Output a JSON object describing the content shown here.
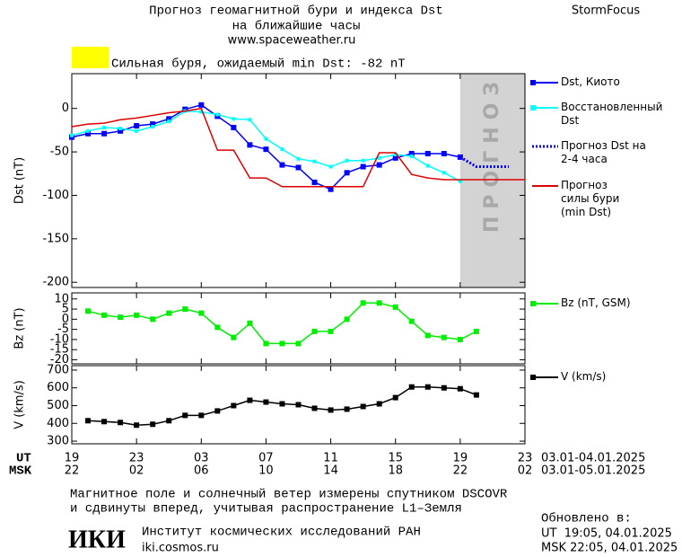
{
  "header": {
    "title": "Прогноз геомагнитной бури и индекса Dst",
    "subtitle": "на ближайшие часы",
    "url": "www.spaceweather.ru",
    "brand": "StormFocus"
  },
  "storm": {
    "label": "Сильная буря, ожидаемый min Dst: -82 nT",
    "color": "#ffff00"
  },
  "time_axis": {
    "xlim": [
      0,
      28
    ],
    "ut_label": "UT",
    "msk_label": "MSK",
    "ut_ticks": [
      {
        "value": 0,
        "label": "19"
      },
      {
        "value": 4,
        "label": "23"
      },
      {
        "value": 8,
        "label": "03"
      },
      {
        "value": 12,
        "label": "07"
      },
      {
        "value": 16,
        "label": "11"
      },
      {
        "value": 20,
        "label": "15"
      },
      {
        "value": 24,
        "label": "19"
      },
      {
        "value": 28,
        "label": "23"
      }
    ],
    "msk_ticks": [
      {
        "value": 0,
        "label": "22"
      },
      {
        "value": 4,
        "label": "02"
      },
      {
        "value": 8,
        "label": "06"
      },
      {
        "value": 12,
        "label": "10"
      },
      {
        "value": 16,
        "label": "14"
      },
      {
        "value": 20,
        "label": "18"
      },
      {
        "value": 24,
        "label": "22"
      },
      {
        "value": 28,
        "label": "02"
      }
    ],
    "ut_dates": "03.01-04.01.2025",
    "msk_dates": "03.01-05.01.2025"
  },
  "chart_data": [
    {
      "type": "line",
      "ylabel": "Dst (nT)",
      "ylim": [
        -206,
        40
      ],
      "yticks": [
        0,
        -50,
        -100,
        -150,
        -200
      ],
      "forecast": {
        "label": "ПРОГНОЗ",
        "xlim": [
          24,
          28
        ],
        "color": "#d3d3d3"
      },
      "series": [
        {
          "name": "Dst, Киото",
          "color": "#0000ff",
          "marker": "square",
          "dash": false,
          "x": [
            0,
            1,
            2,
            3,
            4,
            5,
            6,
            7,
            8,
            9,
            10,
            11,
            12,
            13,
            14,
            15,
            16,
            17,
            18,
            19,
            20,
            21,
            22,
            23,
            24
          ],
          "values": [
            -33,
            -29,
            -29,
            -26,
            -20,
            -18,
            -12,
            -1,
            4,
            -9,
            -22,
            -42,
            -47,
            -65,
            -68,
            -85,
            -93,
            -74,
            -67,
            -65,
            -57,
            -52,
            -52,
            -52,
            -56
          ]
        },
        {
          "name": "Восстановленный Dst",
          "color": "#00ffff",
          "marker": "square",
          "dash": false,
          "x": [
            0,
            1,
            2,
            3,
            4,
            5,
            6,
            7,
            8,
            9,
            10,
            11,
            12,
            13,
            14,
            15,
            16,
            17,
            18,
            19,
            20,
            21,
            22,
            23,
            24
          ],
          "values": [
            -31,
            -26,
            -22,
            -23,
            -26,
            -21,
            -15,
            -3,
            -4,
            -7,
            -12,
            -13,
            -35,
            -47,
            -58,
            -61,
            -67,
            -60,
            -60,
            -57,
            -53,
            -55,
            -66,
            -74,
            -84
          ]
        },
        {
          "name": "Прогноз Dst на 2-4 часа",
          "color": "#0000ff",
          "marker": null,
          "dash": true,
          "x": [
            24,
            25,
            26,
            27
          ],
          "values": [
            -56,
            -67,
            -67,
            -67
          ]
        },
        {
          "name": "Прогноз силы бури (min Dst)",
          "color": "#dd0000",
          "marker": null,
          "dash": false,
          "x": [
            0,
            1,
            2,
            3,
            4,
            5,
            6,
            7,
            8,
            9,
            10,
            11,
            12,
            13,
            14,
            15,
            16,
            17,
            18,
            19,
            20,
            21,
            22,
            23,
            24,
            28
          ],
          "values": [
            -21,
            -18,
            -17,
            -13,
            -11,
            -8,
            -5,
            -3,
            0,
            -48,
            -48,
            -80,
            -80,
            -90,
            -90,
            -90,
            -90,
            -90,
            -90,
            -51,
            -51,
            -76,
            -80,
            -82,
            -82,
            -82
          ]
        }
      ]
    },
    {
      "type": "line",
      "ylabel": "Bz (nT)",
      "ylim": [
        -22,
        13
      ],
      "yticks": [
        10,
        5,
        0,
        -5,
        -10,
        -15,
        -20
      ],
      "series": [
        {
          "name": "Bz (nT, GSM)",
          "color": "#00ee00",
          "marker": "square",
          "dash": false,
          "x": [
            1,
            2,
            3,
            4,
            5,
            6,
            7,
            8,
            9,
            10,
            11,
            12,
            13,
            14,
            15,
            16,
            17,
            18,
            19,
            20,
            21,
            22,
            23,
            24,
            25
          ],
          "values": [
            4,
            2,
            1,
            2,
            0,
            3,
            5,
            3,
            -4,
            -9,
            -2,
            -12,
            -12,
            -12,
            -6,
            -6,
            0,
            8,
            8,
            6,
            -1,
            -8,
            -9,
            -10,
            -6
          ]
        }
      ]
    },
    {
      "type": "line",
      "ylabel": "V (km/s)",
      "ylim": [
        285,
        725
      ],
      "yticks": [
        700,
        600,
        500,
        400,
        300
      ],
      "series": [
        {
          "name": "V (km/s)",
          "color": "#000000",
          "marker": "square",
          "dash": false,
          "x": [
            1,
            2,
            3,
            4,
            5,
            6,
            7,
            8,
            9,
            10,
            11,
            12,
            13,
            14,
            15,
            16,
            17,
            18,
            19,
            20,
            21,
            22,
            23,
            24,
            25
          ],
          "values": [
            415,
            410,
            405,
            390,
            395,
            415,
            445,
            445,
            470,
            500,
            530,
            520,
            510,
            505,
            485,
            475,
            480,
            495,
            510,
            545,
            605,
            605,
            600,
            595,
            560
          ]
        }
      ]
    }
  ],
  "footer": {
    "note1": "Магнитное поле и солнечный ветер измерены спутником DSCOVR",
    "note2": "и сдвинуты вперед, учитывая распространение L1–Земля",
    "updated": "Обновлено в:",
    "updated_ut": "UT  19:05, 04.01.2025",
    "updated_msk": "MSK 22:05, 04.01.2025",
    "logo": "ИКИ",
    "institute": "Институт космических исследований РАН",
    "site": "iki.cosmos.ru"
  }
}
